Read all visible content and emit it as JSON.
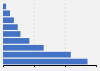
{
  "chart_data": {
    "type": "bar",
    "orientation": "horizontal",
    "categories": [
      null,
      null,
      null,
      null,
      null,
      null,
      null,
      null,
      null
    ],
    "values": [
      218,
      175,
      105,
      68,
      45,
      38,
      28,
      18,
      8
    ],
    "color": "#4472c4",
    "xlim": [
      0,
      240
    ],
    "xticks": [
      80,
      160
    ],
    "grid": true,
    "tick_labels": false
  }
}
